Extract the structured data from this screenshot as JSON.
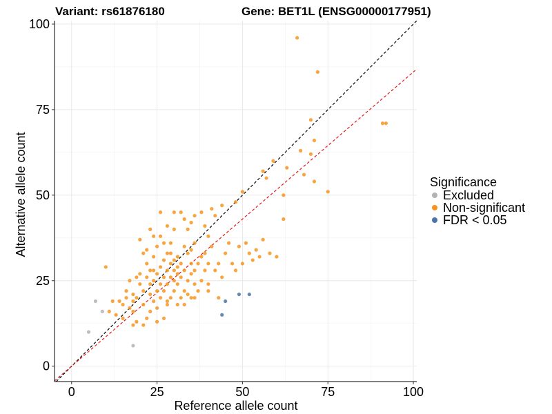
{
  "chart_data": {
    "type": "scatter",
    "title_left": "Variant: rs61876180",
    "title_right": "Gene: BET1L (ENSG00000177951)",
    "xlabel": "Reference allele count",
    "ylabel": "Alternative allele count",
    "xlim": [
      -5,
      101
    ],
    "ylim": [
      -4.5,
      101
    ],
    "xticks": [
      0,
      25,
      50,
      75,
      100
    ],
    "yticks": [
      0,
      25,
      50,
      75,
      100
    ],
    "grid": true,
    "legend": {
      "title": "Significance",
      "position": "right",
      "entries": [
        {
          "label": "Excluded",
          "color": "#b3b3b3"
        },
        {
          "label": "Non-significant",
          "color": "#f7941d"
        },
        {
          "label": "FDR < 0.05",
          "color": "#4a74a8"
        }
      ]
    },
    "reference_lines": [
      {
        "name": "identity",
        "color": "#000000",
        "slope": 1,
        "intercept": 0
      },
      {
        "name": "fit",
        "color": "#e31a1c",
        "slope": 0.86,
        "intercept": 0
      }
    ],
    "series": [
      {
        "name": "Excluded",
        "color": "#b3b3b3",
        "points": [
          [
            5,
            10
          ],
          [
            7,
            19
          ],
          [
            9,
            16
          ],
          [
            18,
            6
          ]
        ]
      },
      {
        "name": "FDR < 0.05",
        "color": "#4a74a8",
        "points": [
          [
            44,
            15
          ],
          [
            45,
            19
          ],
          [
            49,
            21
          ],
          [
            52,
            21
          ]
        ]
      },
      {
        "name": "Non-significant",
        "color": "#f7941d",
        "points": [
          [
            66,
            96
          ],
          [
            72,
            86
          ],
          [
            91,
            71
          ],
          [
            92,
            71
          ],
          [
            70,
            72
          ],
          [
            67,
            63
          ],
          [
            70,
            62
          ],
          [
            71,
            66
          ],
          [
            68,
            56
          ],
          [
            71,
            54
          ],
          [
            75,
            51
          ],
          [
            59,
            60
          ],
          [
            57,
            55
          ],
          [
            56,
            57
          ],
          [
            63,
            58
          ],
          [
            62,
            50
          ],
          [
            62,
            43
          ],
          [
            50,
            51
          ],
          [
            48,
            48
          ],
          [
            10,
            29
          ],
          [
            11,
            16
          ],
          [
            13,
            15
          ],
          [
            14,
            19
          ],
          [
            15,
            18
          ],
          [
            16,
            20
          ],
          [
            16,
            22
          ],
          [
            17,
            17
          ],
          [
            17,
            25
          ],
          [
            18,
            16
          ],
          [
            18,
            19
          ],
          [
            18,
            21
          ],
          [
            19,
            13
          ],
          [
            19,
            20
          ],
          [
            20,
            24
          ],
          [
            20,
            27
          ],
          [
            21,
            12
          ],
          [
            21,
            18
          ],
          [
            21,
            22
          ],
          [
            22,
            14
          ],
          [
            22,
            26
          ],
          [
            22,
            30
          ],
          [
            23,
            16
          ],
          [
            23,
            21
          ],
          [
            23,
            24
          ],
          [
            23,
            28
          ],
          [
            24,
            19
          ],
          [
            24,
            25
          ],
          [
            24,
            32
          ],
          [
            25,
            17
          ],
          [
            25,
            22
          ],
          [
            25,
            27
          ],
          [
            25,
            35
          ],
          [
            26,
            20
          ],
          [
            26,
            24
          ],
          [
            26,
            29
          ],
          [
            26,
            38
          ],
          [
            27,
            14
          ],
          [
            27,
            22
          ],
          [
            27,
            26
          ],
          [
            27,
            31
          ],
          [
            28,
            18
          ],
          [
            28,
            24
          ],
          [
            28,
            28
          ],
          [
            28,
            33
          ],
          [
            29,
            20
          ],
          [
            29,
            26
          ],
          [
            29,
            30
          ],
          [
            29,
            36
          ],
          [
            30,
            22
          ],
          [
            30,
            25
          ],
          [
            30,
            28
          ],
          [
            30,
            40
          ],
          [
            31,
            18
          ],
          [
            31,
            24
          ],
          [
            31,
            27
          ],
          [
            31,
            32
          ],
          [
            32,
            20
          ],
          [
            32,
            26
          ],
          [
            32,
            30
          ],
          [
            32,
            45
          ],
          [
            33,
            22
          ],
          [
            33,
            28
          ],
          [
            33,
            35
          ],
          [
            34,
            21
          ],
          [
            34,
            25
          ],
          [
            34,
            33
          ],
          [
            35,
            20
          ],
          [
            35,
            27
          ],
          [
            35,
            30
          ],
          [
            35,
            42
          ],
          [
            36,
            24
          ],
          [
            36,
            28
          ],
          [
            36,
            36
          ],
          [
            37,
            22
          ],
          [
            37,
            30
          ],
          [
            38,
            25
          ],
          [
            38,
            32
          ],
          [
            38,
            45
          ],
          [
            39,
            28
          ],
          [
            39,
            33
          ],
          [
            40,
            24
          ],
          [
            40,
            30
          ],
          [
            40,
            38
          ],
          [
            41,
            35
          ],
          [
            42,
            28
          ],
          [
            42,
            44
          ],
          [
            43,
            30
          ],
          [
            44,
            26
          ],
          [
            45,
            33
          ],
          [
            46,
            36
          ],
          [
            47,
            30
          ],
          [
            48,
            28
          ],
          [
            49,
            35
          ],
          [
            50,
            30
          ],
          [
            51,
            36
          ],
          [
            52,
            33
          ],
          [
            53,
            31
          ],
          [
            54,
            34
          ],
          [
            55,
            32
          ],
          [
            56,
            37
          ],
          [
            58,
            33
          ],
          [
            60,
            32
          ],
          [
            26,
            45
          ],
          [
            28,
            41
          ],
          [
            24,
            38
          ],
          [
            20,
            37
          ],
          [
            19,
            26
          ],
          [
            22,
            34
          ],
          [
            30,
            45
          ],
          [
            36,
            44
          ],
          [
            39,
            41
          ],
          [
            41,
            46
          ],
          [
            44,
            47
          ],
          [
            34,
            40
          ],
          [
            33,
            43
          ],
          [
            27,
            36
          ],
          [
            23,
            40
          ],
          [
            21,
            33
          ],
          [
            24,
            28
          ],
          [
            28,
            19
          ],
          [
            33,
            18
          ],
          [
            36,
            20
          ],
          [
            40,
            22
          ],
          [
            43,
            20
          ],
          [
            25,
            13
          ],
          [
            18,
            12
          ],
          [
            15,
            14
          ],
          [
            12,
            19
          ],
          [
            30,
            31
          ],
          [
            31,
            29
          ],
          [
            29,
            33
          ],
          [
            35,
            34
          ]
        ]
      }
    ]
  }
}
